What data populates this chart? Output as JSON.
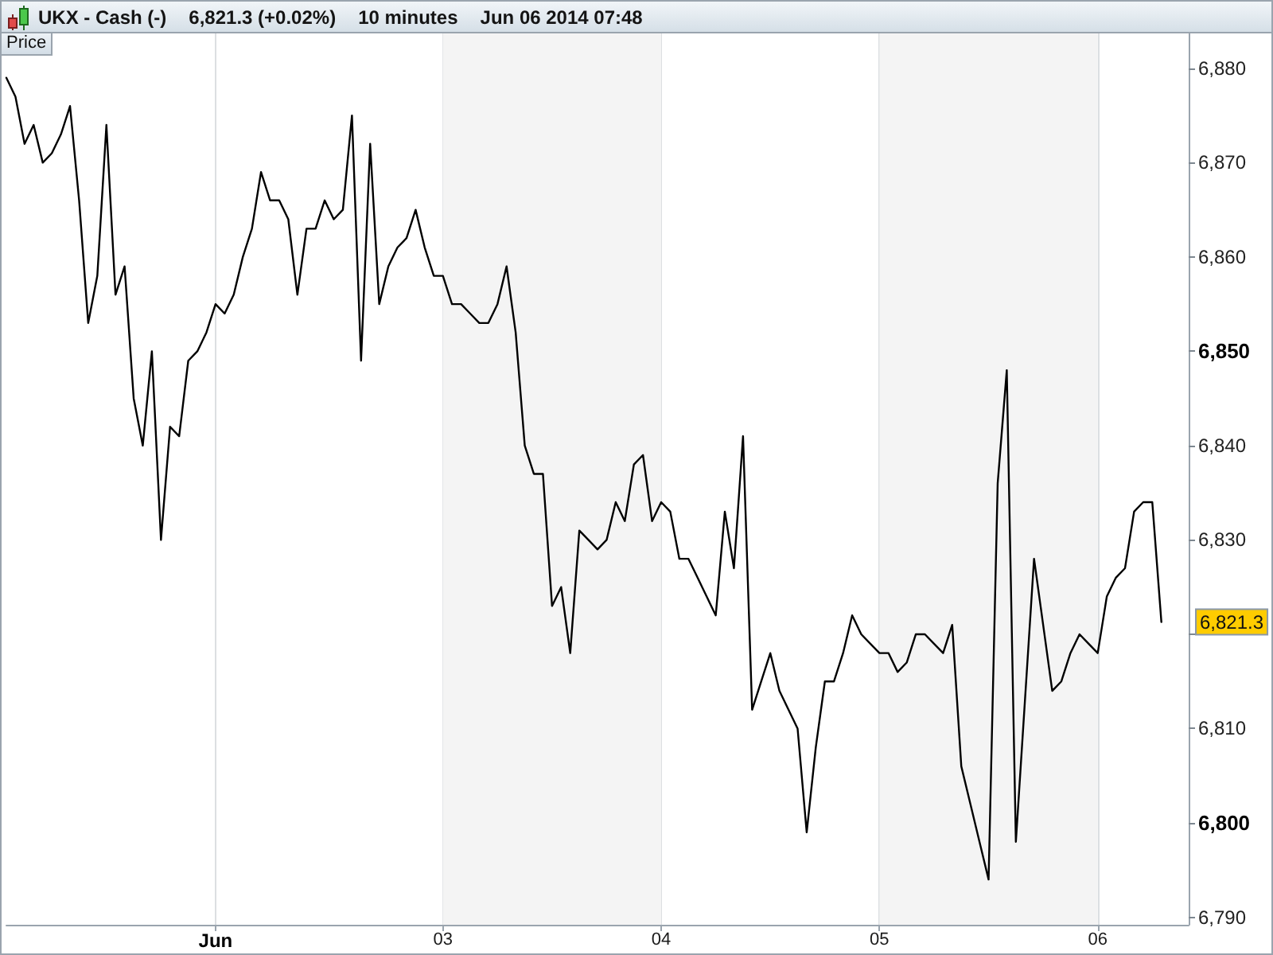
{
  "chart_data": {
    "type": "line",
    "title": "UKX - Cash (-)",
    "ylabel": "Price",
    "annotations": [
      "6,821.3 (+0.02%)",
      "10 minutes",
      "Jun 06 2014 07:48",
      "6,821.3"
    ],
    "categories": [
      null,
      null,
      null,
      null,
      null,
      null,
      null,
      null,
      null,
      null,
      null,
      null,
      null,
      null,
      null,
      null,
      null,
      null,
      null,
      null,
      null,
      null,
      null,
      "Jun",
      null,
      null,
      null,
      null,
      null,
      null,
      null,
      null,
      null,
      null,
      null,
      null,
      null,
      null,
      null,
      null,
      null,
      null,
      null,
      null,
      null,
      null,
      null,
      null,
      "03",
      null,
      null,
      null,
      null,
      null,
      null,
      null,
      null,
      null,
      null,
      null,
      null,
      null,
      null,
      null,
      null,
      null,
      null,
      null,
      null,
      null,
      null,
      null,
      "04",
      null,
      null,
      null,
      null,
      null,
      null,
      null,
      null,
      null,
      null,
      null,
      null,
      null,
      null,
      null,
      null,
      null,
      null,
      null,
      null,
      null,
      null,
      null,
      "05",
      null,
      null,
      null,
      null,
      null,
      null,
      null,
      null,
      null,
      null,
      null,
      null,
      null,
      null,
      null,
      null,
      null,
      null,
      null,
      null,
      null,
      null,
      null,
      "06",
      null,
      null,
      null,
      null,
      null,
      null,
      null,
      null,
      null,
      null
    ],
    "values": [
      6879,
      6877,
      6872,
      6874,
      6870,
      6871,
      6873,
      6876,
      6866,
      6853,
      6858,
      6874,
      6856,
      6859,
      6845,
      6840,
      6850,
      6830,
      6842,
      6841,
      6849,
      6850,
      6852,
      6855,
      6854,
      6856,
      6860,
      6863,
      6869,
      6866,
      6866,
      6864,
      6856,
      6863,
      6863,
      6866,
      6864,
      6865,
      6875,
      6849,
      6872,
      6855,
      6859,
      6861,
      6862,
      6865,
      6861,
      6858,
      6858,
      6855,
      6855,
      6854,
      6853,
      6853,
      6855,
      6859,
      6852,
      6840,
      6837,
      6837,
      6823,
      6825,
      6818,
      6831,
      6830,
      6829,
      6830,
      6834,
      6832,
      6838,
      6839,
      6832,
      6834,
      6833,
      6828,
      6828,
      6826,
      6824,
      6822,
      6833,
      6827,
      6841,
      6812,
      6815,
      6818,
      6814,
      6812,
      6810,
      6799,
      6808,
      6815,
      6815,
      6818,
      6822,
      6820,
      6819,
      6818,
      6818,
      6816,
      6817,
      6820,
      6820,
      6819,
      6818,
      6821,
      6806,
      6802,
      6798,
      6794,
      6836,
      6848,
      6798,
      6813,
      6828,
      6821,
      6814,
      6815,
      6818,
      6820,
      6819,
      6818,
      6824,
      6826,
      6827,
      6833,
      6834,
      6834,
      6821.3,
      null,
      null,
      null
    ],
    "color": "#000000",
    "ylim": [
      6789.2,
      6883.7
    ],
    "yticks": [
      {
        "value": 6790,
        "label": "6,790"
      },
      {
        "value": 6800,
        "label": "6,800"
      },
      {
        "value": 6810,
        "label": "6,810"
      },
      {
        "value": 6820,
        "label": null
      },
      {
        "value": 6830,
        "label": "6,830"
      },
      {
        "value": 6840,
        "label": "6,840"
      },
      {
        "value": 6850,
        "label": "6,850"
      },
      {
        "value": 6860,
        "label": "6,860"
      },
      {
        "value": 6870,
        "label": "6,870"
      },
      {
        "value": 6880,
        "label": "6,880"
      }
    ],
    "grid": "x",
    "marker": "none",
    "line_style": "solid",
    "bands": [
      {
        "axis": "x",
        "from": "03",
        "to": "04",
        "color": "#f4f4f4"
      },
      {
        "axis": "x",
        "from": "05",
        "to": "06",
        "color": "#f4f4f4"
      }
    ]
  }
}
